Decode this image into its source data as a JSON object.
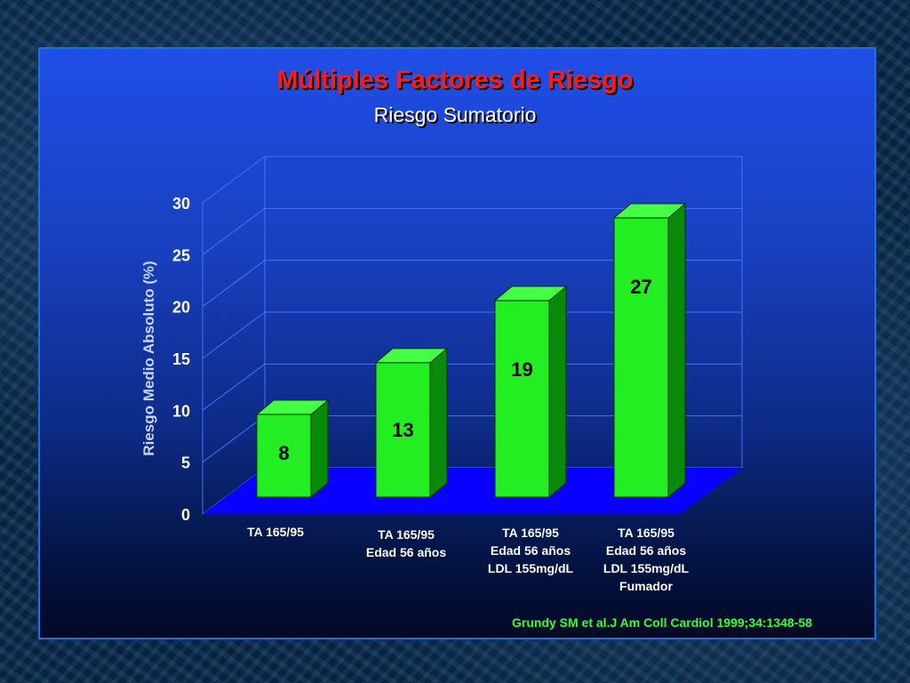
{
  "title": "Múltiples Factores de Riesgo",
  "subtitle": "Riesgo Sumatorio",
  "citation": "Grundy SM et al.J Am Coll Cardiol 1999;34:1348-58",
  "colors": {
    "bar_front": "#22ee22",
    "bar_side": "#0a8a0a",
    "bar_top": "#44ff44",
    "floor": "#0a00ff",
    "title": "#ff1a1a",
    "citation": "#33ff33"
  },
  "chart_data": {
    "type": "bar",
    "title": "Múltiples Factores de Riesgo",
    "subtitle": "Riesgo Sumatorio",
    "ylabel": "Riesgo Medio Absoluto (%)",
    "ylim": [
      0,
      30
    ],
    "yticks": [
      "0",
      "5",
      "10",
      "15",
      "20",
      "25",
      "30"
    ],
    "grid": true,
    "categories": [
      [
        "TA 165/95"
      ],
      [
        "TA 165/95",
        "Edad 56 años"
      ],
      [
        "TA 165/95",
        "Edad 56 años",
        "LDL 155mg/dL"
      ],
      [
        "TA 165/95",
        "Edad 56 años",
        "LDL 155mg/dL",
        "Fumador"
      ]
    ],
    "values": [
      8,
      13,
      19,
      27
    ],
    "value_labels": [
      "8",
      "13",
      "19",
      "27"
    ]
  }
}
